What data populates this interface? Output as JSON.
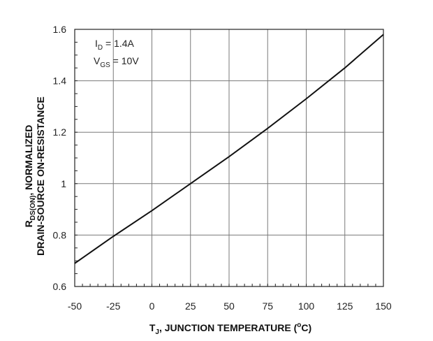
{
  "chart_data": {
    "type": "line",
    "title": "",
    "xlabel": {
      "symbol": "T",
      "sub": "J",
      "text": ", JUNCTION TEMPERATURE (",
      "sup": "o",
      "unit": "C)"
    },
    "ylabel": {
      "line1_symbol": "R",
      "line1_sub": "DS(ON)",
      "line1_text": ", NORMALIZED",
      "line2": "DRAIN-SOURCE ON-RESISTANCE"
    },
    "xlim": [
      -50,
      150
    ],
    "ylim": [
      0.6,
      1.6
    ],
    "x_ticks": [
      -50,
      -25,
      0,
      25,
      50,
      75,
      100,
      125,
      150
    ],
    "y_ticks": [
      0.6,
      0.8,
      1,
      1.2,
      1.4,
      1.6
    ],
    "x_tick_labels": [
      "-50",
      "-25",
      "0",
      "25",
      "50",
      "75",
      "100",
      "125",
      "150"
    ],
    "y_tick_labels": [
      "0.6",
      "0.8",
      "1",
      "1.2",
      "1.4",
      "1.6"
    ],
    "grid": true,
    "annotations": [
      {
        "symbol": "I",
        "sub": "D",
        "text": " = 1.4A"
      },
      {
        "symbol": "V",
        "sub": "GS",
        "text": " = 10V"
      }
    ],
    "series": [
      {
        "name": "RDS(ON) normalized",
        "x": [
          -50,
          -25,
          0,
          25,
          50,
          75,
          100,
          125,
          150
        ],
        "y": [
          0.69,
          0.795,
          0.895,
          1.0,
          1.105,
          1.215,
          1.33,
          1.45,
          1.58
        ]
      }
    ]
  }
}
